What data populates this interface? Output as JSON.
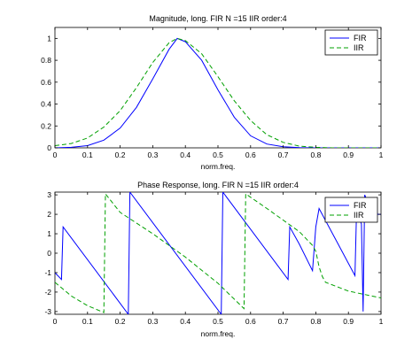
{
  "chart_data": [
    {
      "type": "line",
      "title": "Magnitude, long. FIR N =15 IIR order:4",
      "xlabel": "norm.freq.",
      "ylabel": "",
      "xlim": [
        0,
        1
      ],
      "ylim": [
        0,
        1.1
      ],
      "xticks": [
        "0",
        "0.1",
        "0.2",
        "0.3",
        "0.4",
        "0.5",
        "0.6",
        "0.7",
        "0.8",
        "0.9",
        "1"
      ],
      "xtick_values": [
        0,
        0.1,
        0.2,
        0.3,
        0.4,
        0.5,
        0.6,
        0.7,
        0.8,
        0.9,
        1
      ],
      "yticks": [
        "0",
        "0.2",
        "0.4",
        "0.6",
        "0.8",
        "1"
      ],
      "ytick_values": [
        0,
        0.2,
        0.4,
        0.6,
        0.8,
        1
      ],
      "legend_position": "top-right",
      "series": [
        {
          "name": "FIR",
          "color": "#0000ff",
          "style": "solid",
          "x": [
            0,
            0.05,
            0.1,
            0.15,
            0.2,
            0.25,
            0.3,
            0.35,
            0.375,
            0.4,
            0.45,
            0.5,
            0.55,
            0.6,
            0.65,
            0.7,
            0.75,
            0.8,
            0.85,
            0.9,
            0.95,
            1
          ],
          "y": [
            0.0,
            0.005,
            0.02,
            0.07,
            0.18,
            0.37,
            0.63,
            0.9,
            1.0,
            0.97,
            0.8,
            0.53,
            0.28,
            0.11,
            0.035,
            0.01,
            0.002,
            0.0,
            0.0,
            0.0,
            0.0,
            0.0
          ]
        },
        {
          "name": "IIR",
          "color": "#00a000",
          "style": "dashed",
          "x": [
            0,
            0.05,
            0.1,
            0.15,
            0.2,
            0.25,
            0.3,
            0.35,
            0.375,
            0.4,
            0.45,
            0.5,
            0.55,
            0.6,
            0.65,
            0.7,
            0.75,
            0.8,
            0.85,
            0.9,
            0.95,
            1
          ],
          "y": [
            0.02,
            0.04,
            0.09,
            0.19,
            0.34,
            0.55,
            0.78,
            0.96,
            1.0,
            0.98,
            0.86,
            0.65,
            0.43,
            0.25,
            0.12,
            0.05,
            0.015,
            0.005,
            0.0,
            0.0,
            0.0,
            0.0
          ]
        }
      ]
    },
    {
      "type": "line",
      "title": "Phase Response, long. FIR N =15 IIR order:4",
      "xlabel": "norm.freq.",
      "ylabel": "",
      "xlim": [
        0,
        1
      ],
      "ylim": [
        -3.1416,
        3.1416
      ],
      "xticks": [
        "0",
        "0.1",
        "0.2",
        "0.3",
        "0.4",
        "0.5",
        "0.6",
        "0.7",
        "0.8",
        "0.9",
        "1"
      ],
      "xtick_values": [
        0,
        0.1,
        0.2,
        0.3,
        0.4,
        0.5,
        0.6,
        0.7,
        0.8,
        0.9,
        1
      ],
      "yticks": [
        "-3",
        "-2",
        "-1",
        "0",
        "1",
        "2",
        "3"
      ],
      "ytick_values": [
        -3,
        -2,
        -1,
        0,
        1,
        2,
        3
      ],
      "legend_position": "top-right",
      "series": [
        {
          "name": "FIR",
          "color": "#0000ff",
          "style": "solid",
          "x": [
            0,
            0.02,
            0.025,
            0.225,
            0.23,
            0.51,
            0.515,
            0.715,
            0.72,
            0.75,
            0.79,
            0.8,
            0.81,
            0.92,
            0.925,
            0.94,
            0.945,
            0.95,
            0.955,
            0.98,
            0.99,
            1
          ],
          "y": [
            -1.0,
            -1.35,
            1.35,
            -3.14,
            3.14,
            -3.14,
            3.14,
            -1.35,
            1.35,
            0.45,
            -0.9,
            1.35,
            2.3,
            -1.15,
            2.2,
            1.5,
            -3.0,
            3.0,
            2.8,
            2.5,
            2.0,
            2.0
          ]
        },
        {
          "name": "IIR",
          "color": "#00a000",
          "style": "dashed",
          "x": [
            0,
            0.05,
            0.1,
            0.15,
            0.155,
            0.2,
            0.3,
            0.4,
            0.5,
            0.58,
            0.585,
            0.65,
            0.75,
            0.79,
            0.8,
            0.81,
            0.82,
            0.83,
            0.9,
            1
          ],
          "y": [
            -1.5,
            -2.2,
            -2.7,
            -3.05,
            3.05,
            2.1,
            1.0,
            -0.2,
            -1.55,
            -2.85,
            3.05,
            2.3,
            1.1,
            0.4,
            0.1,
            -0.7,
            -1.2,
            -1.5,
            -1.95,
            -2.3
          ]
        }
      ]
    }
  ]
}
